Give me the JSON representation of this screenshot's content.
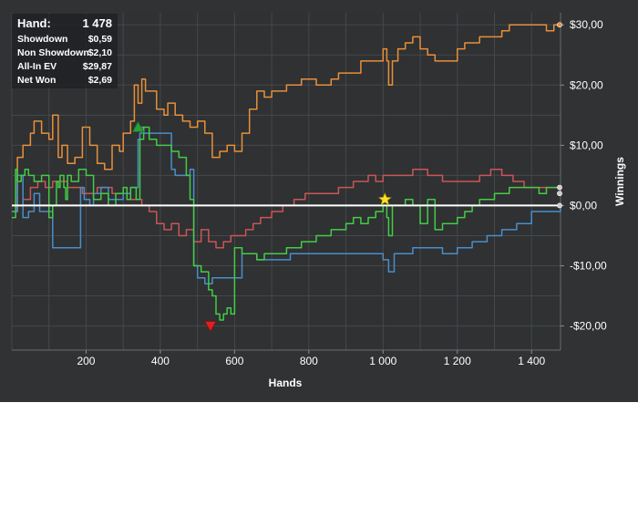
{
  "stats": {
    "hand_label": "Hand:",
    "hand_value": "1 478",
    "rows": [
      {
        "label": "Showdown",
        "value": "$0,59"
      },
      {
        "label": "Non Showdown",
        "value": "$2,10"
      },
      {
        "label": "All-In EV",
        "value": "$29,87"
      },
      {
        "label": "Net Won",
        "value": "$2,69"
      }
    ]
  },
  "chart_data": {
    "type": "line",
    "title": "",
    "xlabel": "Hands",
    "ylabel": "Winnings",
    "xlim": [
      0,
      1478
    ],
    "ylim": [
      -24,
      32
    ],
    "x_ticks": [
      200,
      400,
      600,
      800,
      1000,
      1200,
      1400
    ],
    "x_tick_labels": [
      "200",
      "400",
      "600",
      "800",
      "1 000",
      "1 200",
      "1 400"
    ],
    "y_ticks": [
      -20,
      -10,
      0,
      10,
      20,
      30
    ],
    "y_tick_labels": [
      "-$20,00",
      "-$10,00",
      "$0,00",
      "$10,00",
      "$20,00",
      "$30,00"
    ],
    "grid": true,
    "zero_line": true,
    "colors": {
      "orange": "#e8903a",
      "green": "#44cc44",
      "red": "#cc5555",
      "blue": "#4a8ec8",
      "zero": "#ffffff",
      "grid": "#45484b",
      "text": "#ffffff"
    },
    "series": [
      {
        "color": "orange",
        "x": [
          0,
          15,
          30,
          50,
          60,
          80,
          100,
          110,
          125,
          135,
          150,
          170,
          190,
          210,
          230,
          250,
          270,
          290,
          300,
          320,
          330,
          340,
          350,
          360,
          370,
          390,
          410,
          420,
          440,
          460,
          480,
          500,
          520,
          540,
          560,
          580,
          600,
          620,
          640,
          660,
          680,
          700,
          720,
          740,
          760,
          780,
          800,
          820,
          840,
          860,
          880,
          900,
          920,
          940,
          960,
          980,
          1000,
          1010,
          1015,
          1025,
          1040,
          1060,
          1080,
          1100,
          1120,
          1140,
          1160,
          1180,
          1200,
          1220,
          1240,
          1260,
          1280,
          1300,
          1320,
          1340,
          1360,
          1380,
          1400,
          1420,
          1440,
          1460,
          1478
        ],
        "y": [
          -1,
          8,
          10,
          12,
          14,
          12,
          11,
          15,
          8,
          10,
          7,
          8,
          13,
          10,
          7,
          6,
          10,
          9,
          12,
          14,
          20,
          17,
          21,
          19,
          19,
          16,
          15,
          17,
          15,
          14,
          13,
          14,
          12,
          8,
          9,
          10,
          9,
          12,
          16,
          19,
          18,
          19,
          19,
          20,
          20,
          21,
          21,
          20,
          20,
          21,
          22,
          22,
          22,
          24,
          24,
          24,
          26,
          24,
          20,
          24,
          26,
          27,
          28,
          26,
          25,
          24,
          24,
          24,
          26,
          27,
          27,
          28,
          28,
          28,
          29,
          30,
          30,
          30,
          30,
          30,
          29,
          30,
          30
        ]
      },
      {
        "color": "green",
        "x": [
          0,
          10,
          15,
          25,
          35,
          45,
          60,
          80,
          100,
          110,
          120,
          125,
          130,
          140,
          145,
          150,
          160,
          180,
          200,
          220,
          240,
          260,
          280,
          300,
          310,
          320,
          335,
          345,
          355,
          370,
          390,
          410,
          430,
          450,
          470,
          480,
          490,
          500,
          510,
          520,
          530,
          540,
          550,
          560,
          570,
          580,
          590,
          600,
          620,
          640,
          660,
          680,
          700,
          720,
          740,
          760,
          780,
          800,
          820,
          840,
          860,
          880,
          900,
          920,
          940,
          960,
          980,
          1000,
          1010,
          1015,
          1025,
          1040,
          1060,
          1080,
          1100,
          1120,
          1140,
          1160,
          1180,
          1200,
          1220,
          1240,
          1260,
          1280,
          1300,
          1320,
          1340,
          1360,
          1380,
          1400,
          1420,
          1440,
          1460,
          1478
        ],
        "y": [
          -2,
          6,
          4,
          5,
          6,
          5,
          4,
          5,
          -2,
          0,
          4,
          3,
          5,
          3,
          1,
          5,
          4,
          6,
          5,
          1,
          2,
          0,
          2,
          3,
          1,
          3,
          1,
          11,
          13,
          11,
          10,
          10,
          9,
          8,
          5,
          1,
          -10,
          -10,
          -11,
          -11,
          -14,
          -15,
          -18,
          -19,
          -18,
          -17,
          -18,
          -7,
          -8,
          -8,
          -9,
          -8,
          -8,
          -8,
          -7,
          -7,
          -6,
          -6,
          -5,
          -5,
          -4,
          -4,
          -3,
          -2,
          -3,
          -2,
          -1,
          0,
          -2,
          -5,
          0,
          0,
          1,
          0,
          -3,
          1,
          -4,
          -3,
          -3,
          -2,
          -1,
          0,
          1,
          1,
          2,
          2,
          3,
          3,
          3,
          3,
          2,
          3,
          3,
          3
        ]
      },
      {
        "color": "red",
        "x": [
          0,
          15,
          30,
          50,
          70,
          90,
          110,
          130,
          150,
          170,
          190,
          210,
          230,
          250,
          270,
          290,
          310,
          330,
          350,
          370,
          390,
          410,
          430,
          450,
          470,
          490,
          510,
          530,
          550,
          570,
          590,
          610,
          630,
          650,
          670,
          700,
          730,
          760,
          790,
          820,
          850,
          880,
          900,
          920,
          940,
          960,
          980,
          1000,
          1020,
          1040,
          1060,
          1080,
          1100,
          1120,
          1140,
          1160,
          1180,
          1200,
          1230,
          1260,
          1290,
          1320,
          1350,
          1380,
          1410,
          1440,
          1478
        ],
        "y": [
          -1,
          0,
          1,
          3,
          4,
          3,
          4,
          4,
          3,
          3,
          2,
          2,
          3,
          3,
          2,
          2,
          1,
          1,
          0,
          -1,
          -3,
          -4,
          -3,
          -5,
          -4,
          -6,
          -4,
          -6,
          -7,
          -6,
          -5,
          -5,
          -4,
          -3,
          -2,
          -1,
          0,
          1,
          2,
          2,
          2,
          3,
          3,
          4,
          4,
          5,
          4,
          5,
          5,
          5,
          5,
          6,
          6,
          5,
          5,
          4,
          4,
          4,
          4,
          5,
          6,
          5,
          4,
          3,
          3,
          3,
          2
        ]
      },
      {
        "color": "blue",
        "x": [
          0,
          15,
          30,
          45,
          60,
          75,
          90,
          110,
          120,
          130,
          180,
          185,
          195,
          210,
          220,
          240,
          260,
          280,
          300,
          320,
          340,
          345,
          350,
          355,
          370,
          400,
          420,
          430,
          440,
          470,
          480,
          490,
          500,
          510,
          520,
          540,
          560,
          580,
          600,
          620,
          640,
          660,
          700,
          750,
          800,
          850,
          900,
          950,
          1000,
          1010,
          1015,
          1030,
          1060,
          1080,
          1120,
          1140,
          1160,
          1200,
          1240,
          1280,
          1320,
          1360,
          1400,
          1440,
          1478
        ],
        "y": [
          -1,
          5,
          -2,
          -1,
          2,
          -1,
          -1,
          -7,
          -7,
          -7,
          -7,
          3,
          1,
          0,
          2,
          3,
          1,
          1,
          2,
          3,
          11,
          12,
          13,
          12,
          12,
          12,
          12,
          6,
          5,
          5,
          6,
          -10,
          -12,
          -12,
          -13,
          -12,
          -12,
          -12,
          -12,
          -8,
          -8,
          -9,
          -9,
          -8,
          -8,
          -8,
          -8,
          -8,
          -9,
          -9,
          -11,
          -8,
          -8,
          -7,
          -7,
          -7,
          -8,
          -7,
          -6,
          -5,
          -4,
          -3,
          -1,
          -1,
          0
        ]
      }
    ],
    "markers": [
      {
        "shape": "triangle-up",
        "color": "#2e9e3a",
        "x": 340,
        "y": 13
      },
      {
        "shape": "triangle-down",
        "color": "#e02020",
        "x": 535,
        "y": -20
      },
      {
        "shape": "star",
        "color": "#ffe020",
        "x": 1005,
        "y": 1
      }
    ],
    "end_dots": [
      {
        "color": "#e8903a",
        "y": 30
      },
      {
        "color": "#cccccc",
        "y": 3
      },
      {
        "color": "#cccccc",
        "y": 2
      },
      {
        "color": "#cccccc",
        "y": 0
      }
    ]
  }
}
